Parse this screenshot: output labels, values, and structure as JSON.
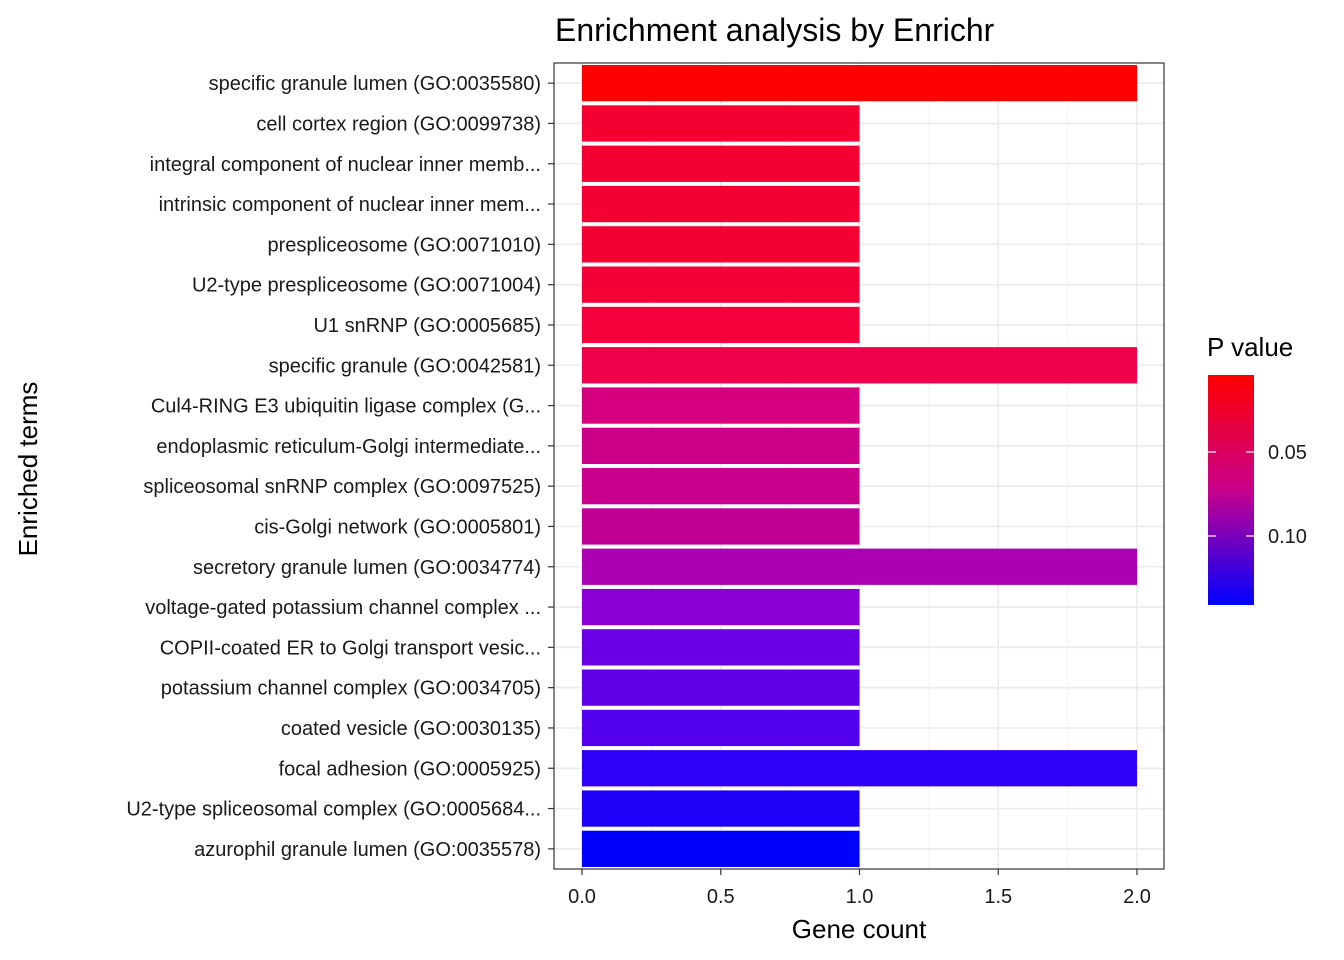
{
  "chart_data": {
    "type": "bar",
    "orientation": "horizontal",
    "title": "Enrichment analysis by Enrichr",
    "xlabel": "Gene count",
    "ylabel": "Enriched terms",
    "xlim": [
      0,
      2
    ],
    "x_ticks": [
      "0.0",
      "0.5",
      "1.0",
      "1.5",
      "2.0"
    ],
    "x_tick_values": [
      0,
      0.5,
      1.0,
      1.5,
      2.0
    ],
    "grid": true,
    "categories": [
      "specific granule lumen (GO:0035580)",
      "cell cortex region (GO:0099738)",
      "integral component of nuclear inner memb...",
      "intrinsic component of nuclear inner mem...",
      "prespliceosome (GO:0071010)",
      "U2-type prespliceosome (GO:0071004)",
      "U1 snRNP (GO:0005685)",
      "specific granule (GO:0042581)",
      "Cul4-RING E3 ubiquitin ligase complex (G...",
      "endoplasmic reticulum-Golgi intermediate...",
      "spliceosomal snRNP complex (GO:0097525)",
      "cis-Golgi network (GO:0005801)",
      "secretory granule lumen (GO:0034774)",
      "voltage-gated potassium channel complex ...",
      "COPII-coated ER to Golgi transport vesic...",
      "potassium channel complex (GO:0034705)",
      "coated vesicle (GO:0030135)",
      "focal adhesion (GO:0005925)",
      "U2-type spliceosomal complex (GO:0005684...",
      "azurophil granule lumen (GO:0035578)"
    ],
    "values": [
      2,
      1,
      1,
      1,
      1,
      1,
      1,
      2,
      1,
      1,
      1,
      1,
      2,
      1,
      1,
      1,
      1,
      2,
      1,
      1
    ],
    "colors": [
      "#ff0000",
      "#f50030",
      "#f50032",
      "#f50032",
      "#f50032",
      "#f50036",
      "#f5003a",
      "#f0004a",
      "#d40080",
      "#cc0088",
      "#c8008c",
      "#c00094",
      "#ac00b4",
      "#8a00d4",
      "#6a00e6",
      "#5e00e8",
      "#5200ee",
      "#2e00f6",
      "#1e00f8",
      "#0000ff"
    ],
    "legend": {
      "title": "P value",
      "position": "right",
      "ticks": [
        "0.05",
        "0.10"
      ],
      "color_top": "#ff0000",
      "color_bottom": "#0000ff"
    }
  }
}
